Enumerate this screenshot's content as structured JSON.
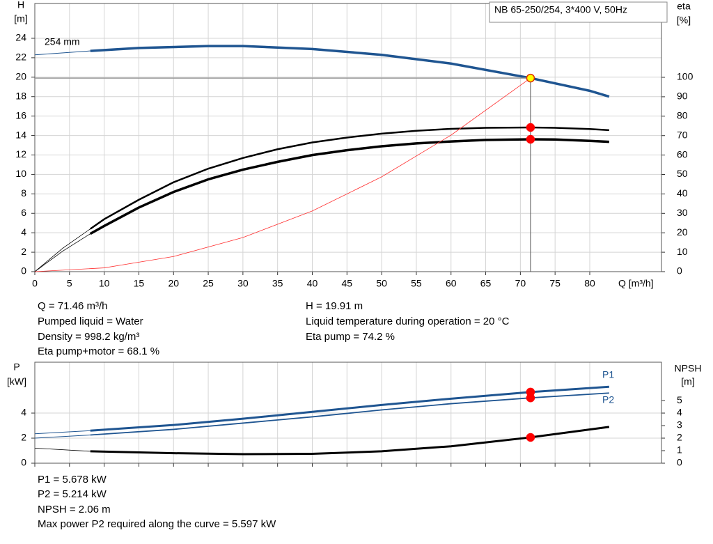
{
  "chart_data": [
    {
      "type": "line",
      "title": "NB 65-250/254, 3*400 V, 50Hz",
      "y_label": "H",
      "y_unit": "[m]",
      "y2_label": "eta",
      "y2_unit": "[%]",
      "x_label": "Q [m³/h]",
      "xlim": [
        0,
        90.34
      ],
      "xticks": [
        0,
        5,
        10,
        15,
        20,
        25,
        30,
        35,
        40,
        45,
        50,
        55,
        60,
        65,
        70,
        75,
        80
      ],
      "ylim": [
        0,
        27.58
      ],
      "yticks": [
        0,
        2,
        4,
        6,
        8,
        10,
        12,
        14,
        16,
        18,
        20,
        22,
        24
      ],
      "y2lim": [
        0,
        138
      ],
      "y2ticks": [
        0,
        10,
        20,
        30,
        40,
        50,
        60,
        70,
        80,
        90,
        100
      ],
      "grid": true,
      "series": [
        {
          "name": "254 mm",
          "color": "#1f5591",
          "width": 3.5,
          "x": [
            8,
            15,
            25,
            30,
            40,
            50,
            60,
            70,
            71.46,
            80,
            82.8
          ],
          "values": [
            22.7,
            23.0,
            23.2,
            23.2,
            22.9,
            22.3,
            21.4,
            20.1,
            19.91,
            18.6,
            18.0
          ]
        },
        {
          "color": "#1f5591",
          "width": 1,
          "x": [
            0,
            8
          ],
          "values": [
            22.3,
            22.7
          ]
        },
        {
          "color": "#000000",
          "width": 2.5,
          "axis": "y2",
          "x": [
            8,
            10,
            15,
            20,
            25,
            30,
            35,
            40,
            45,
            50,
            55,
            60,
            65,
            71.46,
            75,
            80,
            82.8
          ],
          "values": [
            22,
            27,
            37,
            46,
            53,
            58.5,
            63,
            66.5,
            69,
            71,
            72.5,
            73.5,
            74,
            74.2,
            74,
            73.4,
            72.8
          ]
        },
        {
          "color": "#000000",
          "width": 0.8,
          "axis": "y2",
          "x": [
            0,
            4,
            8
          ],
          "values": [
            0,
            12,
            22
          ]
        },
        {
          "color": "#000000",
          "width": 3.5,
          "axis": "y2",
          "x": [
            8,
            10,
            15,
            20,
            25,
            30,
            35,
            40,
            45,
            50,
            55,
            60,
            65,
            71.46,
            75,
            80,
            82.8
          ],
          "values": [
            19.5,
            23.5,
            33,
            41,
            47.5,
            52.5,
            56.5,
            60,
            62.5,
            64.5,
            66,
            67,
            67.8,
            68.1,
            68,
            67.3,
            66.8
          ]
        },
        {
          "color": "#000000",
          "width": 0.8,
          "axis": "y2",
          "x": [
            0,
            4,
            8
          ],
          "values": [
            0,
            10.5,
            19.5
          ]
        },
        {
          "color": "#ff3030",
          "width": 0.8,
          "x": [
            0,
            10,
            20,
            30,
            40,
            50,
            60,
            71.46
          ],
          "values": [
            0,
            0.39,
            1.56,
            3.51,
            6.24,
            9.75,
            14.04,
            19.91
          ]
        }
      ],
      "points": [
        {
          "x": 71.46,
          "y": 19.91,
          "color": "#ffff00",
          "stroke": "#e03000",
          "guides": true
        },
        {
          "x": 71.46,
          "y": 74.2,
          "axis": "y2",
          "color": "#ff0000",
          "stroke": "#ff0000"
        },
        {
          "x": 71.46,
          "y": 68.1,
          "axis": "y2",
          "color": "#ff0000",
          "stroke": "#ff0000"
        }
      ],
      "notes": [
        "Q = 71.46 m³/h",
        "Pumped liquid = Water",
        "Density = 998.2 kg/m³",
        "Eta pump+motor = 68.1 %",
        "H = 19.91 m",
        "Liquid temperature during operation = 20 °C",
        "Eta pump = 74.2 %"
      ]
    },
    {
      "type": "line",
      "y_label": "P",
      "y_unit": "[kW]",
      "y2_label": "NPSH",
      "y2_unit": "[m]",
      "xlim": [
        0,
        90.34
      ],
      "xticks": [
        0,
        5,
        10,
        15,
        20,
        25,
        30,
        35,
        40,
        45,
        50,
        55,
        60,
        65,
        70,
        75,
        80
      ],
      "ylim": [
        0,
        8.06
      ],
      "yticks": [
        0,
        2,
        4
      ],
      "y2lim": [
        0,
        8.06
      ],
      "y2ticks": [
        0,
        1,
        2,
        3,
        4,
        5
      ],
      "grid": true,
      "series": [
        {
          "name": "P1",
          "color": "#1f5591",
          "width": 3,
          "x": [
            8,
            20,
            30,
            40,
            50,
            60,
            71.46,
            82.8
          ],
          "values": [
            2.6,
            3.05,
            3.55,
            4.1,
            4.65,
            5.15,
            5.678,
            6.1
          ]
        },
        {
          "color": "#1f5591",
          "width": 1,
          "x": [
            0,
            8
          ],
          "values": [
            2.35,
            2.6
          ]
        },
        {
          "name": "P2",
          "color": "#1f5591",
          "width": 1.8,
          "x": [
            8,
            20,
            30,
            40,
            50,
            60,
            71.46,
            82.8
          ],
          "values": [
            2.25,
            2.7,
            3.2,
            3.7,
            4.25,
            4.75,
            5.214,
            5.6
          ]
        },
        {
          "color": "#1f5591",
          "width": 1,
          "x": [
            0,
            8
          ],
          "values": [
            2.0,
            2.25
          ]
        },
        {
          "color": "#000000",
          "width": 3,
          "axis": "y2",
          "x": [
            8,
            20,
            30,
            40,
            50,
            60,
            71.46,
            82.8
          ],
          "values": [
            0.95,
            0.8,
            0.72,
            0.75,
            0.95,
            1.35,
            2.06,
            2.9
          ]
        },
        {
          "color": "#000000",
          "width": 0.8,
          "axis": "y2",
          "x": [
            0,
            8
          ],
          "values": [
            1.2,
            0.95
          ]
        }
      ],
      "points": [
        {
          "x": 71.46,
          "y": 5.678,
          "color": "#ff0000",
          "stroke": "#ff0000"
        },
        {
          "x": 71.46,
          "y": 5.214,
          "color": "#ff0000",
          "stroke": "#ff0000"
        },
        {
          "x": 71.46,
          "y": 2.06,
          "axis": "y2",
          "color": "#ff0000",
          "stroke": "#ff0000"
        }
      ],
      "notes": [
        "P1 = 5.678 kW",
        "P2 = 5.214 kW",
        "NPSH = 2.06 m",
        "Max power P2 required along the curve = 5.597 kW"
      ]
    }
  ]
}
